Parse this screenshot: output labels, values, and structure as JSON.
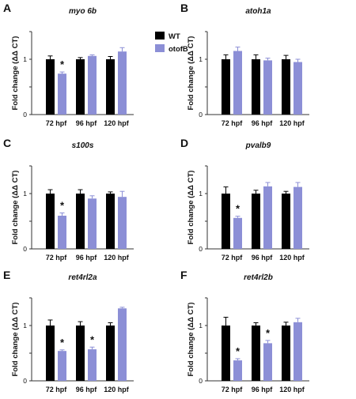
{
  "colors": {
    "WT": "#000000",
    "otofB": "#8c8fd6",
    "axis": "#333333",
    "error": "#555555"
  },
  "legend": {
    "position": "top-right of panel A",
    "items": [
      "WT",
      "otofB"
    ]
  },
  "chart_data": [
    {
      "type": "bar",
      "panel": "A",
      "title": "myo 6b",
      "ylabel": "Fold change (ΔΔ CT)",
      "ylim": [
        0,
        1.5
      ],
      "categories": [
        "72 hpf",
        "96 hpf",
        "120 hpf"
      ],
      "series": [
        {
          "name": "WT",
          "values": [
            1.0,
            1.0,
            1.0
          ],
          "errors": [
            0.06,
            0.03,
            0.05
          ]
        },
        {
          "name": "otofB",
          "values": [
            0.74,
            1.06,
            1.14
          ],
          "errors": [
            0.03,
            0.02,
            0.07
          ]
        }
      ],
      "significance": [
        0
      ]
    },
    {
      "type": "bar",
      "panel": "B",
      "title": "atoh1a",
      "ylabel": "Fold change (ΔΔ CT)",
      "ylim": [
        0,
        1.5
      ],
      "categories": [
        "72 hpf",
        "96 hpf",
        "120 hpf"
      ],
      "series": [
        {
          "name": "WT",
          "values": [
            1.0,
            1.0,
            1.0
          ],
          "errors": [
            0.08,
            0.08,
            0.07
          ]
        },
        {
          "name": "otofB",
          "values": [
            1.15,
            0.98,
            0.95
          ],
          "errors": [
            0.07,
            0.04,
            0.05
          ]
        }
      ],
      "significance": []
    },
    {
      "type": "bar",
      "panel": "C",
      "title": "s100s",
      "ylabel": "Fold change (ΔΔ CT)",
      "ylim": [
        0,
        1.5
      ],
      "categories": [
        "72 hpf",
        "96 hpf",
        "120 hpf"
      ],
      "series": [
        {
          "name": "WT",
          "values": [
            1.0,
            1.0,
            1.0
          ],
          "errors": [
            0.07,
            0.07,
            0.03
          ]
        },
        {
          "name": "otofB",
          "values": [
            0.6,
            0.91,
            0.94
          ],
          "errors": [
            0.05,
            0.05,
            0.1
          ]
        }
      ],
      "significance": [
        0
      ]
    },
    {
      "type": "bar",
      "panel": "D",
      "title": "pvalb9",
      "ylabel": "Fold change (ΔΔ CT)",
      "ylim": [
        0,
        1.5
      ],
      "categories": [
        "72 hpf",
        "96 hpf",
        "120 hpf"
      ],
      "series": [
        {
          "name": "WT",
          "values": [
            1.0,
            1.0,
            1.0
          ],
          "errors": [
            0.12,
            0.06,
            0.04
          ]
        },
        {
          "name": "otofB",
          "values": [
            0.56,
            1.13,
            1.12
          ],
          "errors": [
            0.03,
            0.07,
            0.08
          ]
        }
      ],
      "significance": [
        0
      ]
    },
    {
      "type": "bar",
      "panel": "E",
      "title": "ret4rl2a",
      "ylabel": "Fold change (ΔΔ CT)",
      "ylim": [
        0,
        1.5
      ],
      "categories": [
        "72 hpf",
        "96 hpf",
        "120 hpf"
      ],
      "series": [
        {
          "name": "WT",
          "values": [
            1.0,
            1.0,
            1.0
          ],
          "errors": [
            0.1,
            0.07,
            0.05
          ]
        },
        {
          "name": "otofB",
          "values": [
            0.54,
            0.57,
            1.31
          ],
          "errors": [
            0.02,
            0.04,
            0.02
          ]
        }
      ],
      "significance": [
        0,
        1
      ]
    },
    {
      "type": "bar",
      "panel": "F",
      "title": "ret4rl2b",
      "ylabel": "Fold change (ΔΔ CT)",
      "ylim": [
        0,
        1.5
      ],
      "categories": [
        "72 hpf",
        "96 hpf",
        "120 hpf"
      ],
      "series": [
        {
          "name": "WT",
          "values": [
            1.0,
            1.0,
            1.0
          ],
          "errors": [
            0.15,
            0.05,
            0.06
          ]
        },
        {
          "name": "otofB",
          "values": [
            0.37,
            0.68,
            1.06
          ],
          "errors": [
            0.03,
            0.05,
            0.07
          ]
        }
      ],
      "significance": [
        0,
        1
      ]
    }
  ]
}
